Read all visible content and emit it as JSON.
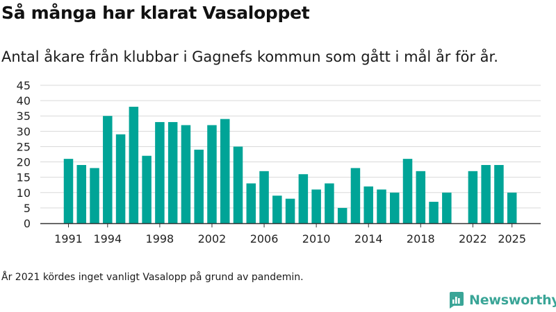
{
  "title": "Så många har klarat Vasaloppet",
  "subtitle": "Antal åkare från klubbar i Gagnefs kommun som gått i mål år för år.",
  "footnote": "År 2021 kördes inget vanligt Vasalopp på grund av pandemin.",
  "brand": "Newsworthy",
  "colors": {
    "bar": "#00a497",
    "grid": "#d9d9d9",
    "axis": "#333333",
    "brand": "#3aa597"
  },
  "chart_data": {
    "type": "bar",
    "years": [
      1991,
      1992,
      1993,
      1994,
      1995,
      1996,
      1997,
      1998,
      1999,
      2000,
      2001,
      2002,
      2003,
      2004,
      2005,
      2006,
      2007,
      2008,
      2009,
      2010,
      2011,
      2012,
      2013,
      2014,
      2015,
      2016,
      2017,
      2018,
      2019,
      2020,
      2021,
      2022,
      2023,
      2024,
      2025
    ],
    "values": [
      21,
      19,
      18,
      35,
      29,
      38,
      22,
      33,
      33,
      32,
      24,
      32,
      34,
      25,
      13,
      17,
      9,
      8,
      16,
      11,
      13,
      5,
      18,
      12,
      11,
      10,
      21,
      17,
      7,
      10,
      null,
      17,
      19,
      19,
      10
    ],
    "ylim": [
      0,
      45
    ],
    "yticks": [
      0,
      5,
      10,
      15,
      20,
      25,
      30,
      35,
      40,
      45
    ],
    "xticks": [
      "1991",
      "1994",
      "1998",
      "2002",
      "2006",
      "2010",
      "2014",
      "2018",
      "2022",
      "2025"
    ],
    "grid": true,
    "legend": "none"
  }
}
